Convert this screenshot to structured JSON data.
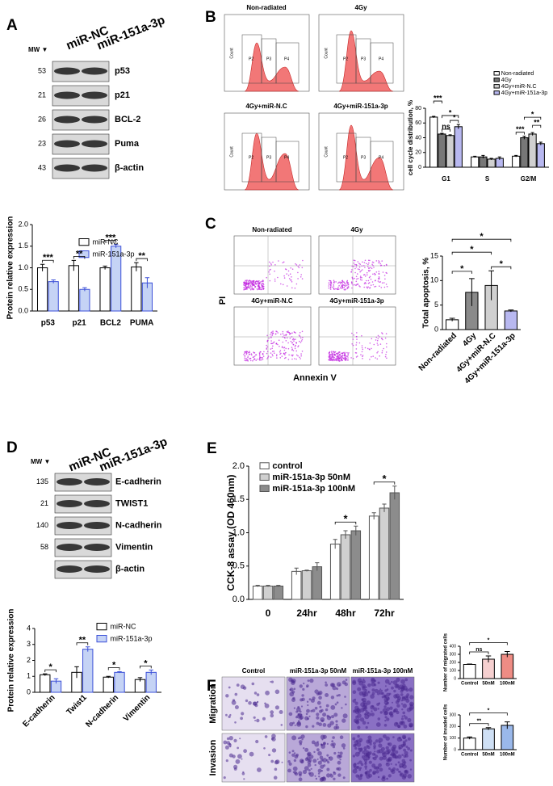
{
  "panel_letters": [
    "A",
    "B",
    "C",
    "D",
    "E",
    "F"
  ],
  "blot_a": {
    "lanes": [
      "miR-NC",
      "miR-151a-3p"
    ],
    "mw_header": "MW ▼",
    "rows": [
      {
        "mw": 53,
        "name": "p53"
      },
      {
        "mw": 21,
        "name": "p21"
      },
      {
        "mw": 26,
        "name": "BCL-2"
      },
      {
        "mw": 23,
        "name": "Puma"
      },
      {
        "mw": 43,
        "name": "β-actin"
      }
    ]
  },
  "flow_b": {
    "panels": [
      "Non-radiated",
      "4Gy",
      "4Gy+miR-N.C",
      "4Gy+miR-151a-3p"
    ],
    "y_label": "Count",
    "gates": [
      "P2",
      "P3",
      "P4"
    ]
  },
  "flow_c": {
    "panels": [
      "Non-radiated",
      "4Gy",
      "4Gy+miR-N.C",
      "4Gy+miR-151a-3p"
    ],
    "y_label": "PI",
    "x_label": "Annexin V"
  },
  "blot_d": {
    "lanes": [
      "miR-NC",
      "miR-151a-3p"
    ],
    "mw_header": "MW ▼",
    "rows": [
      {
        "mw": 135,
        "name": "E-cadherin"
      },
      {
        "mw": 21,
        "name": "TWIST1"
      },
      {
        "mw": 140,
        "name": "N-cadherin"
      },
      {
        "mw": 58,
        "name": "Vimentin"
      },
      {
        "name": "β-actin"
      }
    ]
  },
  "images_f": {
    "columns": [
      "Control",
      "miR-151a-3p 50nM",
      "miR-151a-3p 100nM"
    ],
    "rows": [
      "Migration",
      "Invasion"
    ]
  },
  "chart_data": [
    {
      "type": "bar",
      "y_label": "Protein relative expression",
      "categories": [
        "p53",
        "p21",
        "BCL2",
        "PUMA"
      ],
      "series": [
        {
          "name": "miR-NC",
          "color": "#ffffff",
          "edgecolor": "#000000",
          "values": [
            1.0,
            1.05,
            1.0,
            1.02
          ],
          "errors": [
            0.08,
            0.12,
            0.04,
            0.1
          ]
        },
        {
          "name": "miR-151a-3p",
          "color": "#c5d3f5",
          "edgecolor": "#3b4fd8",
          "values": [
            0.68,
            0.5,
            1.5,
            0.65
          ],
          "errors": [
            0.04,
            0.04,
            0.04,
            0.12
          ]
        }
      ],
      "ylim": [
        0,
        2.0
      ],
      "yticks": [
        {
          "value": 0,
          "label": "0.0"
        },
        {
          "value": 0.5,
          "label": "0.5"
        },
        {
          "value": 1.0,
          "label": "1.0"
        },
        {
          "value": 1.5,
          "label": "1.5"
        },
        {
          "value": 2.0,
          "label": "2.0"
        }
      ],
      "annotations": [
        "***",
        "**",
        "***",
        "**"
      ]
    },
    {
      "type": "bar",
      "y_label": "cell cycle distribution, %",
      "categories": [
        "G1",
        "S",
        "G2/M"
      ],
      "series": [
        {
          "name": "Non-radiated",
          "color": "#ffffff",
          "edgecolor": "#000000",
          "values": [
            68,
            14,
            15
          ],
          "errors": [
            1,
            1,
            1
          ]
        },
        {
          "name": "4Gy",
          "color": "#777777",
          "edgecolor": "#000000",
          "values": [
            45,
            14,
            40
          ],
          "errors": [
            1,
            2,
            2
          ]
        },
        {
          "name": "4Gy+miR-N.C",
          "color": "#d0d0d0",
          "edgecolor": "#000000",
          "values": [
            43,
            11,
            45
          ],
          "errors": [
            1,
            1,
            2
          ]
        },
        {
          "name": "4Gy+miR-151a-3p",
          "color": "#b8b8f0",
          "edgecolor": "#000000",
          "values": [
            55,
            12,
            32
          ],
          "errors": [
            3,
            2,
            2
          ]
        }
      ],
      "ylim": [
        0,
        80
      ],
      "yticks": [
        0,
        20,
        40,
        60,
        80
      ],
      "annotations": [
        "***",
        "ns",
        "*",
        "*",
        "*",
        "***",
        "**"
      ]
    },
    {
      "type": "bar",
      "y_label": "Total apoptosis, %",
      "categories": [
        "Non-radiated",
        "4Gy",
        "4Gy+miR-N.C",
        "4Gy+miR-151a-3p"
      ],
      "values": [
        2,
        7.6,
        9,
        3.8
      ],
      "errors": [
        0.3,
        2.8,
        3,
        0.2
      ],
      "colors": [
        "#ffffff",
        "#8a8a8a",
        "#d0d0d0",
        "#b8b8f0"
      ],
      "edgecolor": "#000000",
      "ylim": [
        0,
        15
      ],
      "yticks": [
        0,
        5,
        10,
        15
      ],
      "annotations": [
        "*",
        "*",
        "*",
        "*"
      ]
    },
    {
      "type": "bar",
      "y_label": "Protein relative expression",
      "categories": [
        "E-cadherin",
        "Twist1",
        "N-cadherin",
        "Vimentin"
      ],
      "series": [
        {
          "name": "miR-NC",
          "color": "#ffffff",
          "edgecolor": "#000000",
          "values": [
            1.1,
            1.25,
            0.95,
            0.8
          ],
          "errors": [
            0.06,
            0.35,
            0.05,
            0.12
          ]
        },
        {
          "name": "miR-151a-3p",
          "color": "#c5d3f5",
          "edgecolor": "#3b4fd8",
          "values": [
            0.7,
            2.7,
            1.25,
            1.25
          ],
          "errors": [
            0.15,
            0.15,
            0.04,
            0.15
          ]
        }
      ],
      "ylim": [
        0,
        4
      ],
      "yticks": [
        0,
        1,
        2,
        3,
        4
      ],
      "annotations": [
        "*",
        "**",
        "*",
        "*"
      ]
    },
    {
      "type": "bar",
      "y_label": "CCK-8 assay (OD 460nm)",
      "categories": [
        "0",
        "24hr",
        "48hr",
        "72hr"
      ],
      "series": [
        {
          "name": "control",
          "color": "#ffffff",
          "edgecolor": "#555555",
          "values": [
            0.2,
            0.42,
            0.83,
            1.25
          ],
          "errors": [
            0.01,
            0.05,
            0.07,
            0.05
          ]
        },
        {
          "name": "miR-151a-3p 50nM",
          "color": "#d0d0d0",
          "edgecolor": "#555555",
          "values": [
            0.2,
            0.43,
            0.97,
            1.37
          ],
          "errors": [
            0.01,
            0.01,
            0.06,
            0.06
          ]
        },
        {
          "name": "miR-151a-3p 100nM",
          "color": "#8c8c8c",
          "edgecolor": "#555555",
          "values": [
            0.2,
            0.49,
            1.03,
            1.6
          ],
          "errors": [
            0.01,
            0.06,
            0.07,
            0.1
          ]
        }
      ],
      "ylim": [
        0,
        2.0
      ],
      "yticks": [
        {
          "value": 0,
          "label": "0.0"
        },
        {
          "value": 0.5,
          "label": "0.5"
        },
        {
          "value": 1.0,
          "label": "1.0"
        },
        {
          "value": 1.5,
          "label": "1.5"
        },
        {
          "value": 2.0,
          "label": "2.0"
        }
      ],
      "annotations": [
        "*",
        "*"
      ]
    },
    {
      "type": "bar",
      "y_label": "Number of migrated cells",
      "categories": [
        "Control",
        "50nM",
        "100nM"
      ],
      "values": [
        175,
        240,
        300
      ],
      "errors": [
        5,
        40,
        35
      ],
      "colors": [
        "#ffffff",
        "#f6d0d0",
        "#ee8c84"
      ],
      "edgecolor": "#000000",
      "ylim": [
        0,
        400
      ],
      "yticks": [
        0,
        100,
        200,
        300,
        400
      ],
      "annotations": [
        "ns",
        "*"
      ]
    },
    {
      "type": "bar",
      "y_label": "Number of invaded cells",
      "categories": [
        "Control",
        "50nM",
        "100nM"
      ],
      "values": [
        100,
        180,
        210
      ],
      "errors": [
        10,
        10,
        30
      ],
      "colors": [
        "#ffffff",
        "#cfe0f5",
        "#9ab8ea"
      ],
      "edgecolor": "#000000",
      "ylim": [
        0,
        300
      ],
      "yticks": [
        0,
        100,
        200,
        300
      ],
      "annotations": [
        "**",
        "*"
      ]
    }
  ]
}
